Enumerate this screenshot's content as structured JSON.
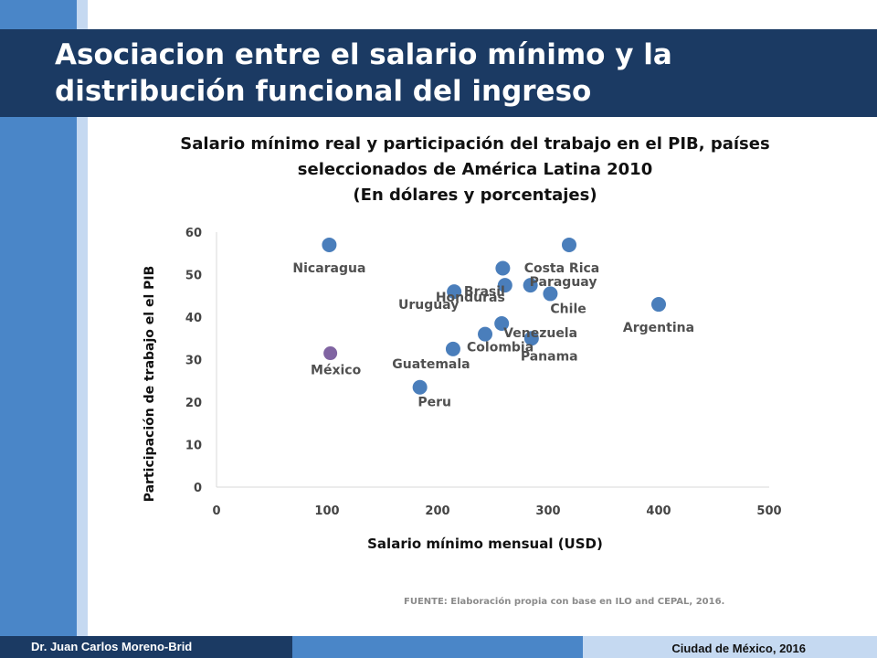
{
  "slide": {
    "title": "Asociacion entre el salario mínimo y la distribución funcional del ingreso",
    "source": "FUENTE: Elaboración propia con base en ILO and CEPAL, 2016.",
    "author": "Dr. Juan Carlos Moreno-Brid",
    "place_date": "Ciudad de México, 2016"
  },
  "colors": {
    "primary": "#1b3a63",
    "accent": "#4a86c8",
    "light": "#c5d9f1",
    "point": "#4a7ebb",
    "highlight": "#8064a2"
  },
  "chart_data": {
    "type": "scatter",
    "title_lines": [
      "Salario mínimo real y participación del trabajo en el PIB, países",
      "seleccionados de América Latina 2010",
      "(En dólares y porcentajes)"
    ],
    "xlabel": "Salario mínimo mensual (USD)",
    "ylabel": "Participación de trabajo el el PIB",
    "xlim": [
      0,
      500
    ],
    "ylim": [
      0,
      60
    ],
    "xticks": [
      0,
      100,
      200,
      300,
      400,
      500
    ],
    "yticks": [
      0,
      10,
      20,
      30,
      40,
      50,
      60
    ],
    "grid": false,
    "points": [
      {
        "label": "Nicaragua",
        "x": 102,
        "y": 57
      },
      {
        "label": "Costa Rica",
        "x": 319,
        "y": 57
      },
      {
        "label": "Brasil",
        "x": 259,
        "y": 51.5
      },
      {
        "label": "Paraguay",
        "x": 284,
        "y": 47.5
      },
      {
        "label": "Honduras",
        "x": 261,
        "y": 47.5
      },
      {
        "label": "Uruguay",
        "x": 215,
        "y": 46
      },
      {
        "label": "Chile",
        "x": 302,
        "y": 45.5
      },
      {
        "label": "Argentina",
        "x": 400,
        "y": 43
      },
      {
        "label": "Venezuela",
        "x": 258,
        "y": 38.5
      },
      {
        "label": "Colombia",
        "x": 243,
        "y": 36
      },
      {
        "label": "Panama",
        "x": 285,
        "y": 35
      },
      {
        "label": "Guatemala",
        "x": 214,
        "y": 32.5
      },
      {
        "label": "México",
        "x": 103,
        "y": 31.5,
        "highlight": true
      },
      {
        "label": "Peru",
        "x": 184,
        "y": 23.5
      }
    ]
  }
}
